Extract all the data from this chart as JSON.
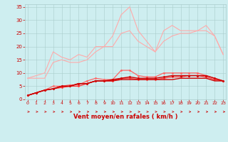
{
  "x": [
    0,
    1,
    2,
    3,
    4,
    5,
    6,
    7,
    8,
    9,
    10,
    11,
    12,
    13,
    14,
    15,
    16,
    17,
    18,
    19,
    20,
    21,
    22,
    23
  ],
  "series": [
    {
      "name": "line1_lightest",
      "color": "#ffaaaa",
      "lw": 0.8,
      "marker": null,
      "values": [
        8,
        9,
        10,
        18,
        16,
        15,
        17,
        16,
        20,
        20,
        24,
        32,
        35,
        26,
        22,
        18,
        26,
        28,
        26,
        26,
        26,
        28,
        24,
        17
      ]
    },
    {
      "name": "line2_light",
      "color": "#ffaaaa",
      "lw": 0.8,
      "marker": null,
      "values": [
        8,
        8,
        8,
        14,
        15,
        14,
        14,
        15,
        18,
        20,
        20,
        25,
        26,
        22,
        20,
        18,
        22,
        24,
        25,
        25,
        26,
        26,
        24,
        17
      ]
    },
    {
      "name": "line3_medium",
      "color": "#ff6666",
      "lw": 0.9,
      "marker": "D",
      "marker_size": 1.5,
      "values": [
        1.5,
        2.5,
        3.5,
        5,
        5,
        5.5,
        5.5,
        7,
        8,
        7.5,
        7.5,
        11,
        11,
        9,
        8.5,
        8.5,
        10,
        10,
        10,
        10,
        10,
        9,
        8,
        7
      ]
    },
    {
      "name": "line4_medium",
      "color": "#ff3333",
      "lw": 0.9,
      "marker": "D",
      "marker_size": 1.5,
      "values": [
        1.5,
        2.5,
        3.5,
        4,
        4.5,
        5,
        5,
        6,
        7,
        7,
        7,
        8,
        8,
        7.5,
        7.5,
        7.5,
        8,
        8.5,
        8.5,
        9,
        9,
        8.5,
        7.5,
        7
      ]
    },
    {
      "name": "line5_dark_marker",
      "color": "#cc0000",
      "lw": 1.0,
      "marker": "D",
      "marker_size": 1.5,
      "values": [
        1.5,
        2.5,
        3.5,
        4,
        5,
        5,
        6,
        6,
        7,
        7,
        7.5,
        8,
        8.5,
        8,
        8,
        8,
        8.5,
        9,
        9,
        9,
        9,
        9,
        8,
        7
      ]
    },
    {
      "name": "line6_flat_dark",
      "color": "#cc0000",
      "lw": 1.0,
      "marker": null,
      "values": [
        1.5,
        2.5,
        3.5,
        4,
        5,
        5,
        6,
        6,
        7,
        7,
        7,
        7.5,
        7.5,
        7.5,
        7.5,
        7.5,
        7.5,
        7.5,
        8,
        8,
        8,
        8,
        7,
        7
      ]
    }
  ],
  "xlabel": "Vent moyen/en rafales ( km/h )",
  "xlim": [
    -0.3,
    23.3
  ],
  "ylim": [
    0,
    36
  ],
  "yticks": [
    0,
    5,
    10,
    15,
    20,
    25,
    30,
    35
  ],
  "xticks": [
    0,
    1,
    2,
    3,
    4,
    5,
    6,
    7,
    8,
    9,
    10,
    11,
    12,
    13,
    14,
    15,
    16,
    17,
    18,
    19,
    20,
    21,
    22,
    23
  ],
  "bg_color": "#ceeef0",
  "grid_color": "#aacccc",
  "xlabel_color": "#cc0000",
  "tick_color": "#cc0000",
  "arrow_color": "#cc0000",
  "figsize": [
    3.2,
    2.0
  ],
  "dpi": 100
}
